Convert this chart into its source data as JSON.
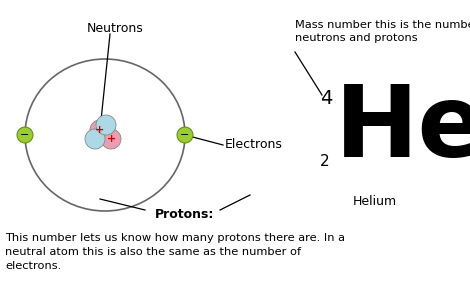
{
  "bg_color": "#ffffff",
  "text_color": "#000000",
  "orbit_color": "#666666",
  "electron_color": "#9acd32",
  "proton_color": "#e8a0b0",
  "neutron_color": "#add8e6",
  "element_symbol": "He",
  "element_name": "Helium",
  "mass_number": "4",
  "atomic_number": "2",
  "label_neutrons": "Neutrons",
  "label_electrons": "Electrons",
  "label_protons_title": "Protons:",
  "label_mass_desc": "Mass number this is the number of\nneutrons and protons",
  "label_protons_body": "This number lets us know how many protons there are. In a\nneutral atom this is also the same as the number of\nelectrons.",
  "figw": 4.7,
  "figh": 2.87,
  "dpi": 100
}
